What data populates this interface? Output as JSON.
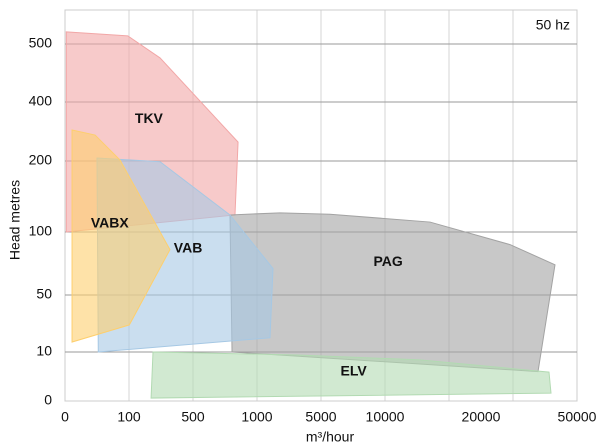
{
  "chart_data": {
    "type": "range",
    "annotation": "50 hz",
    "xlabel": "m³/hour",
    "ylabel": "Head metres",
    "xticks": [
      0,
      100,
      500,
      1000,
      5000,
      10000,
      20000,
      50000
    ],
    "yticks": [
      0,
      10,
      50,
      100,
      200,
      400,
      500
    ],
    "xlim": [
      0,
      50000
    ],
    "ylim": [
      0,
      500
    ],
    "regions": [
      {
        "name": "TKV",
        "color": "#f2a7a7",
        "flow": [
          2,
          98,
          294,
          852,
          828,
          2
        ],
        "head": [
          521,
          514,
          476,
          264,
          124,
          100
        ]
      },
      {
        "name": "PAG",
        "color": "#a3a3a3",
        "flow": [
          789,
          2438,
          5703,
          14688,
          29063,
          43125,
          37813,
          805
        ],
        "head": [
          124,
          127,
          125,
          114,
          90,
          74,
          6,
          10
        ]
      },
      {
        "name": "VAB",
        "color": "#a6c8e4",
        "flow": [
          50,
          294,
          789,
          2000,
          1812,
          52
        ],
        "head": [
          210,
          199,
          124,
          71,
          20,
          10
        ]
      },
      {
        "name": "VABX",
        "color": "#fdcf6e",
        "flow": [
          11,
          47,
          86,
          356,
          102,
          11
        ],
        "head": [
          305,
          288,
          203,
          86,
          29,
          17
        ]
      },
      {
        "name": "ELV",
        "color": "#b2dab2",
        "flow": [
          250,
          3531,
          13646,
          41250,
          41875,
          238
        ],
        "head": [
          10,
          9.4,
          8.4,
          5.9,
          1.6,
          0.6
        ]
      }
    ]
  }
}
